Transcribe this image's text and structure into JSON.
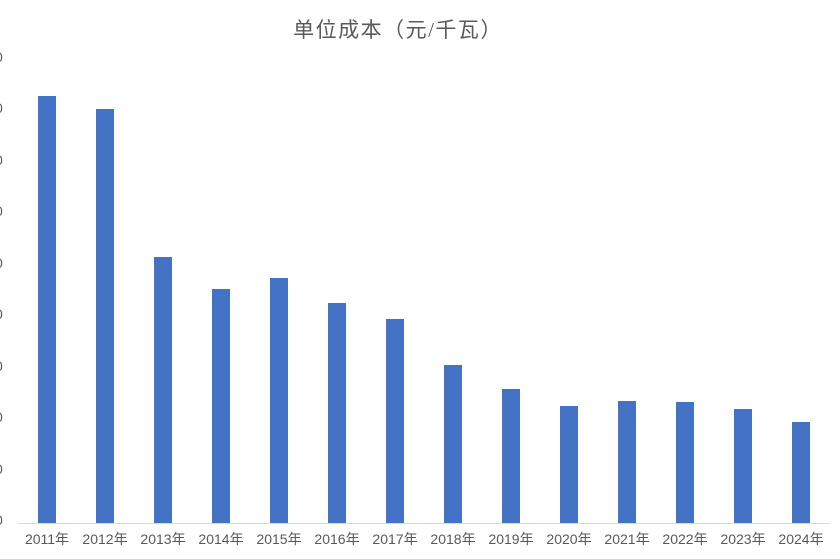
{
  "page": {
    "background": "#ffffff"
  },
  "chart_data": {
    "type": "bar",
    "title": "单位成本（元/千瓦）",
    "categories": [
      "2011年",
      "2012年",
      "2013年",
      "2014年",
      "2015年",
      "2016年",
      "2017年",
      "2018年",
      "2019年",
      "2020年",
      "2021年",
      "2022年",
      "2023年",
      "2024年"
    ],
    "values": [
      8160,
      7920,
      5080,
      4480,
      4680,
      4200,
      3900,
      3020,
      2560,
      2230,
      2330,
      2310,
      2170,
      1940
    ],
    "values_note": "values estimated from bar heights; y-axis numeric labels are cut off at the left edge of the screenshot",
    "xlabel": "",
    "ylabel": "",
    "ylim": [
      0,
      9000
    ],
    "y_tick_step": 1000,
    "y_tick_count": 10,
    "y_tick_visible_text": "0",
    "grid": false,
    "legend": false,
    "colors": {
      "bar": "#4472C4",
      "axis_line": "#D9D9D9",
      "tick_text": "#595959",
      "title_text": "#595959"
    }
  }
}
